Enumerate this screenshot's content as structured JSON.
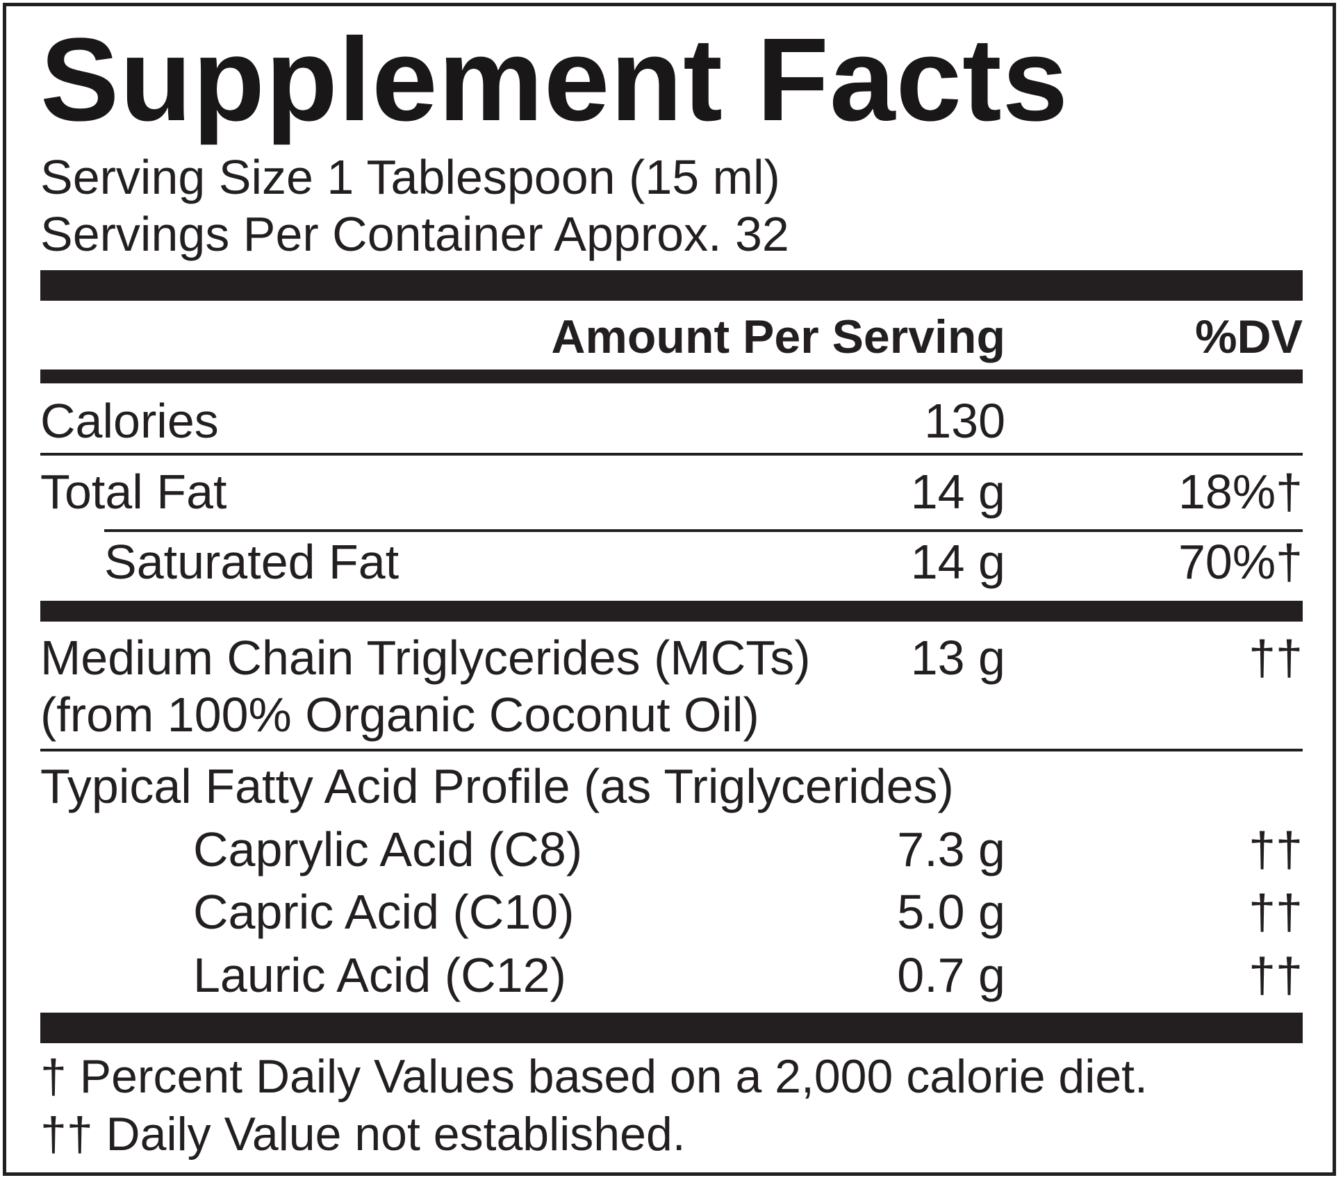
{
  "label": {
    "title": "Supplement Facts",
    "serving_size": "Serving Size 1 Tablespoon (15 ml)",
    "servings_per_container": "Servings Per Container Approx. 32",
    "header": {
      "amount_per_serving": "Amount Per Serving",
      "dv": "%DV"
    },
    "calories": {
      "label": "Calories",
      "amount": "130"
    },
    "total_fat": {
      "label": "Total Fat",
      "amount": "14 g",
      "dv": "18%†"
    },
    "saturated_fat": {
      "label": "Saturated Fat",
      "amount": "14 g",
      "dv": "70%†"
    },
    "mct": {
      "label_line1": "Medium Chain Triglycerides (MCTs)",
      "label_line2": "(from 100% Organic Coconut Oil)",
      "amount": "13 g",
      "dv": "††"
    },
    "profile": {
      "heading": "Typical Fatty Acid Profile (as Triglycerides)",
      "items": [
        {
          "label": "Caprylic Acid (C8)",
          "amount": "7.3 g",
          "dv": "††"
        },
        {
          "label": "Capric Acid (C10)",
          "amount": "5.0 g",
          "dv": "††"
        },
        {
          "label": "Lauric Acid (C12)",
          "amount": "0.7 g",
          "dv": "††"
        }
      ]
    },
    "footnotes": [
      "† Percent Daily Values based on a 2,000 calorie diet.",
      "†† Daily Value not established."
    ]
  }
}
